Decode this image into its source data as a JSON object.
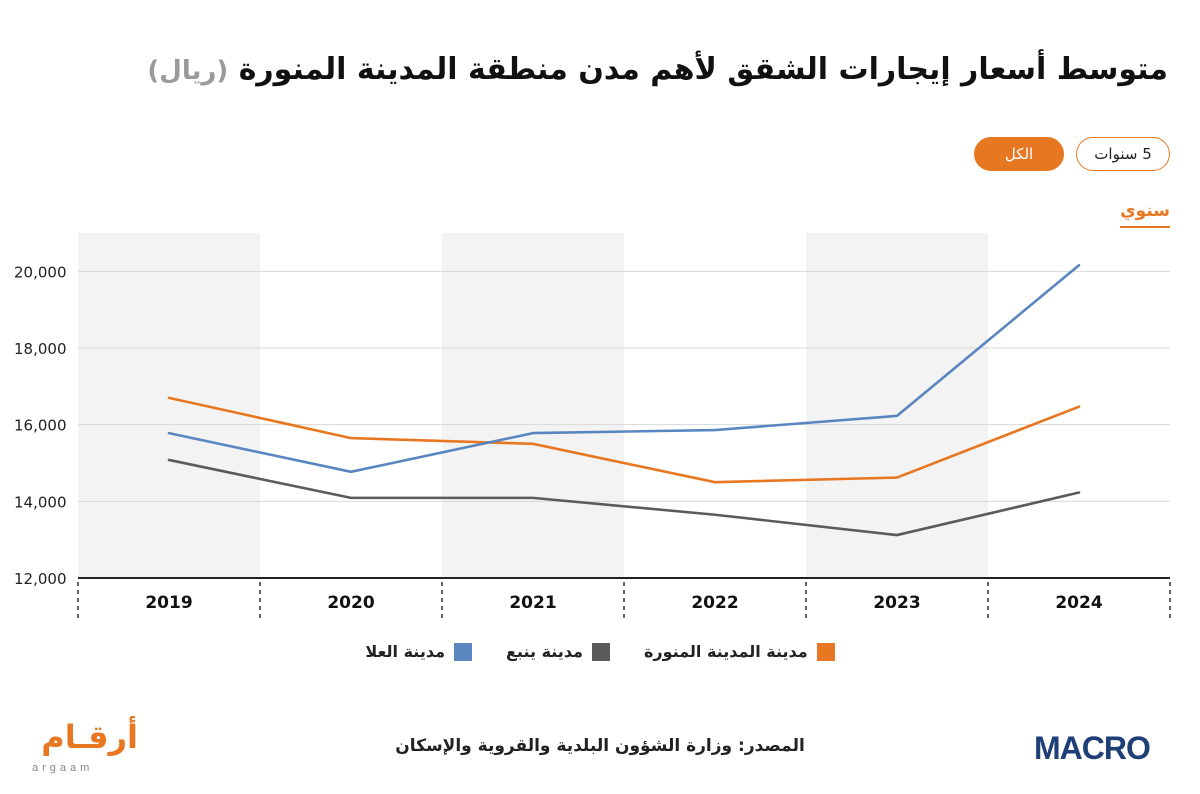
{
  "title": {
    "main": "متوسط أسعار إيجارات الشقق لأهم مدن منطقة المدينة المنورة",
    "unit": "(ريال)"
  },
  "filters": {
    "period_label": "5 سنوات",
    "scope_label": "الكل",
    "frequency_label": "سنوي"
  },
  "colors": {
    "accent": "#e87722",
    "madinah": "#e87722",
    "yanbu": "#5b5b5b",
    "ula": "#5a86c0"
  },
  "legend": [
    {
      "label": "مدينة المدينة المنورة",
      "color": "#e87722"
    },
    {
      "label": "مدينة ينبع",
      "color": "#5b5b5b"
    },
    {
      "label": "مدينة  العلا",
      "color": "#5a86c0"
    }
  ],
  "chart_data": {
    "type": "line",
    "x": [
      "2019",
      "2020",
      "2021",
      "2022",
      "2023",
      "2024"
    ],
    "ylim": [
      12000,
      21000
    ],
    "yticks": [
      "12,000",
      "14,000",
      "16,000",
      "18,000",
      "20,000"
    ],
    "ytick_values": [
      12000,
      14000,
      16000,
      18000,
      20000
    ],
    "grid": true,
    "legend_position": "bottom",
    "series": [
      {
        "name": "مدينة المدينة المنورة",
        "color": "#e87722",
        "values": [
          16700,
          15650,
          15500,
          14500,
          14620,
          16470
        ]
      },
      {
        "name": "مدينة ينبع",
        "color": "#5b5b5b",
        "values": [
          15080,
          14090,
          14090,
          13650,
          13120,
          14230
        ]
      },
      {
        "name": "مدينة  العلا",
        "color": "#5a86c0",
        "values": [
          15780,
          14770,
          15780,
          15860,
          16230,
          20160
        ]
      }
    ]
  },
  "footer": {
    "source": "المصدر: وزارة الشؤون البلدية والقروية والإسكان",
    "logo_macro": "MACRO",
    "logo_argaam_ar": "أرقـام",
    "logo_argaam_en": "argaam"
  }
}
